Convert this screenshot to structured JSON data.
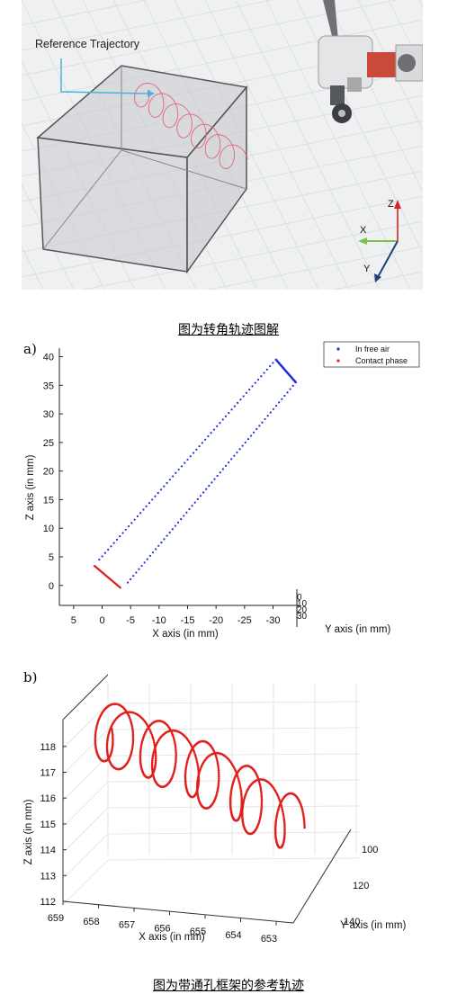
{
  "figure_top": {
    "annotation": "Reference Trajectory",
    "axes": {
      "z": "Z",
      "x": "X",
      "y": "Y"
    },
    "caption": "图为转角轨迹图解"
  },
  "figure_bottom": {
    "caption": "图为带通孔框架的参考轨迹"
  },
  "chart_data": [
    {
      "panel_label": "a)",
      "type": "scatter",
      "title": "",
      "xlabel": "X axis (in mm)",
      "ylabel": "Z axis (in mm)",
      "zlabel": "Y axis (in mm)",
      "x_ticks": [
        "5",
        "0",
        "-5",
        "-10",
        "-15",
        "-20",
        "-25",
        "-30"
      ],
      "z_ticks": [
        "0",
        "5",
        "10",
        "15",
        "20",
        "25",
        "30",
        "35",
        "40"
      ],
      "y_ticks": [
        "0",
        "10",
        "20",
        "30"
      ],
      "legend_position": "top-right",
      "colors": {
        "free_air": "#1f2fd6",
        "contact": "#d81e1e"
      },
      "series": [
        {
          "name": "In free air",
          "segments": [
            {
              "x": [
                0.5,
                -30.5
              ],
              "z": [
                4.5,
                39.5
              ]
            },
            {
              "x": [
                -4.5,
                -34.0
              ],
              "z": [
                0.5,
                35.5
              ]
            }
          ]
        },
        {
          "name": "Contact phase",
          "segments": [
            {
              "x": [
                0.5,
                -3.0
              ],
              "z": [
                3.5,
                -0.5
              ]
            }
          ]
        }
      ]
    },
    {
      "panel_label": "b)",
      "type": "scatter",
      "title": "",
      "xlabel": "X axis (in mm)",
      "ylabel": "Z axis (in mm)",
      "zlabel": "Y axis (in mm)",
      "x_ticks": [
        "659",
        "658",
        "657",
        "656",
        "655",
        "654",
        "653"
      ],
      "z_ticks": [
        "112",
        "113",
        "114",
        "115",
        "116",
        "117",
        "118"
      ],
      "y_ticks": [
        "100",
        "120",
        "140"
      ],
      "colors": {
        "points": "#e0201c"
      },
      "series": [
        {
          "name": "",
          "description_values": {
            "x_range": [
              653.5,
              658.8
            ],
            "z_range": [
              112.1,
              118.4
            ],
            "y_range": [
              100,
              140
            ]
          }
        }
      ]
    }
  ]
}
